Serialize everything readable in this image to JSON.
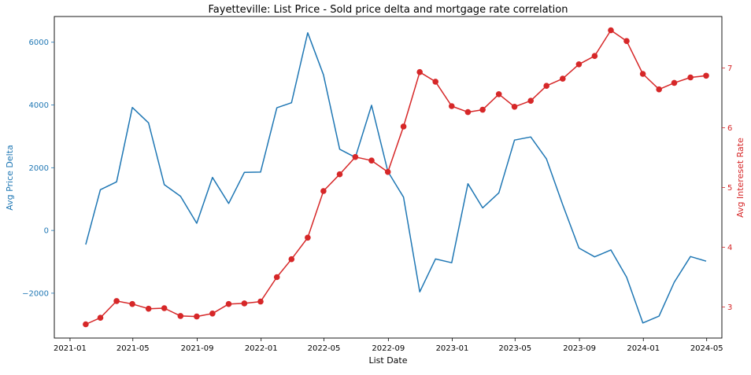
{
  "chart_data": {
    "type": "line",
    "title": "Fayetteville: List Price - Sold price delta and mortgage rate correlation",
    "xlabel": "List Date",
    "ylabel_left": "Avg Price Delta",
    "ylabel_right": "Avg Intereset Rate",
    "x_range": [
      "2020-12-02",
      "2024-05-30"
    ],
    "ylim_left": [
      -3430,
      6820
    ],
    "ylim_right": [
      2.48,
      7.86
    ],
    "grid": false,
    "colors": {
      "left": "#1f77b4",
      "right": "#d62728"
    },
    "x_ticks": [
      {
        "date": "2021-01-01",
        "label": "2021-01"
      },
      {
        "date": "2021-05-01",
        "label": "2021-05"
      },
      {
        "date": "2021-09-01",
        "label": "2021-09"
      },
      {
        "date": "2022-01-01",
        "label": "2022-01"
      },
      {
        "date": "2022-05-01",
        "label": "2022-05"
      },
      {
        "date": "2022-09-01",
        "label": "2022-09"
      },
      {
        "date": "2023-01-01",
        "label": "2023-01"
      },
      {
        "date": "2023-05-01",
        "label": "2023-05"
      },
      {
        "date": "2023-09-01",
        "label": "2023-09"
      },
      {
        "date": "2024-01-01",
        "label": "2024-01"
      },
      {
        "date": "2024-05-01",
        "label": "2024-05"
      }
    ],
    "y_ticks_left": [
      {
        "value": -2000,
        "label": "−2000"
      },
      {
        "value": 0,
        "label": "0"
      },
      {
        "value": 2000,
        "label": "2000"
      },
      {
        "value": 4000,
        "label": "4000"
      },
      {
        "value": 6000,
        "label": "6000"
      }
    ],
    "y_ticks_right": [
      {
        "value": 3,
        "label": "3"
      },
      {
        "value": 4,
        "label": "4"
      },
      {
        "value": 5,
        "label": "5"
      },
      {
        "value": 6,
        "label": "6"
      },
      {
        "value": 7,
        "label": "7"
      }
    ],
    "x": [
      "2021-01-31",
      "2021-02-28",
      "2021-03-31",
      "2021-04-30",
      "2021-05-31",
      "2021-06-30",
      "2021-07-31",
      "2021-08-31",
      "2021-09-30",
      "2021-10-31",
      "2021-11-30",
      "2021-12-31",
      "2022-01-31",
      "2022-02-28",
      "2022-03-31",
      "2022-04-30",
      "2022-05-31",
      "2022-06-30",
      "2022-07-31",
      "2022-08-31",
      "2022-09-30",
      "2022-10-31",
      "2022-11-30",
      "2022-12-31",
      "2023-01-31",
      "2023-02-28",
      "2023-03-31",
      "2023-04-30",
      "2023-05-31",
      "2023-06-30",
      "2023-07-31",
      "2023-08-31",
      "2023-09-30",
      "2023-10-31",
      "2023-11-30",
      "2023-12-31",
      "2024-01-31",
      "2024-02-29",
      "2024-03-31",
      "2024-04-30"
    ],
    "series": [
      {
        "name": "Avg Price Delta",
        "axis": "left",
        "markers": false,
        "values": [
          -450,
          1300,
          1550,
          3920,
          3430,
          1460,
          1090,
          230,
          1690,
          860,
          1850,
          1860,
          3910,
          4070,
          6300,
          4960,
          2590,
          2330,
          3990,
          1880,
          1060,
          -1960,
          -910,
          -1030,
          1490,
          720,
          1200,
          2880,
          2980,
          2280,
          820,
          -560,
          -840,
          -620,
          -1490,
          -2950,
          -2730,
          -1650,
          -830,
          -980
        ]
      },
      {
        "name": "Avg Intereset Rate",
        "axis": "right",
        "markers": true,
        "values": [
          2.71,
          2.82,
          3.1,
          3.05,
          2.97,
          2.98,
          2.85,
          2.84,
          2.89,
          3.05,
          3.06,
          3.09,
          3.5,
          3.8,
          4.16,
          4.94,
          5.22,
          5.51,
          5.45,
          5.26,
          6.02,
          6.93,
          6.77,
          6.36,
          6.26,
          6.3,
          6.56,
          6.35,
          6.45,
          6.7,
          6.82,
          7.06,
          7.2,
          7.63,
          7.45,
          6.9,
          6.64,
          6.75,
          6.84,
          6.87
        ]
      }
    ]
  }
}
